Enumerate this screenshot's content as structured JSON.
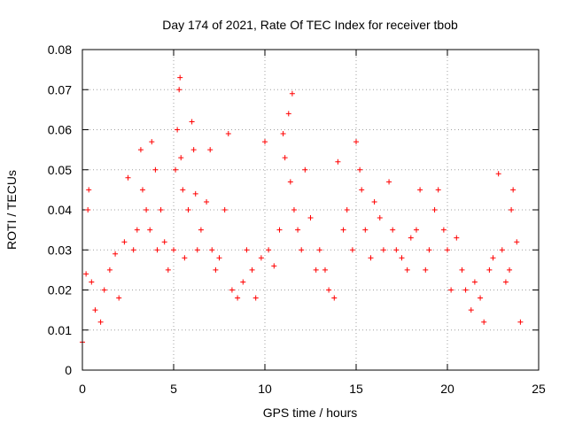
{
  "chart_data": {
    "type": "scatter",
    "title": "Day 174 of 2021, Rate Of TEC Index for receiver tbob",
    "xlabel": "GPS time / hours",
    "ylabel": "ROTI / TECUs",
    "xlim": [
      0,
      25
    ],
    "ylim": [
      0,
      0.08
    ],
    "x_ticks": [
      0,
      5,
      10,
      15,
      20,
      25
    ],
    "x_tick_labels": [
      "0",
      "5",
      "10",
      "15",
      "20",
      "25"
    ],
    "y_ticks": [
      0,
      0.01,
      0.02,
      0.03,
      0.04,
      0.05,
      0.06,
      0.07,
      0.08
    ],
    "y_tick_labels": [
      "0",
      "0.01",
      "0.02",
      "0.03",
      "0.04",
      "0.05",
      "0.06",
      "0.07",
      "0.08"
    ],
    "grid": true,
    "marker": "+",
    "marker_color": "#ff0000",
    "series": [
      {
        "name": "ROTI",
        "x": [
          0.0,
          0.2,
          0.3,
          0.35,
          0.5,
          0.7,
          1.0,
          1.2,
          1.5,
          1.8,
          2.0,
          2.3,
          2.5,
          2.8,
          3.0,
          3.2,
          3.3,
          3.5,
          3.7,
          3.8,
          4.0,
          4.1,
          4.3,
          4.5,
          4.7,
          5.0,
          5.1,
          5.2,
          5.3,
          5.35,
          5.4,
          5.5,
          5.6,
          5.8,
          6.0,
          6.1,
          6.2,
          6.3,
          6.5,
          6.8,
          7.0,
          7.1,
          7.3,
          7.5,
          7.8,
          8.0,
          8.2,
          8.5,
          8.8,
          9.0,
          9.3,
          9.5,
          9.8,
          10.0,
          10.2,
          10.5,
          10.8,
          11.0,
          11.1,
          11.3,
          11.4,
          11.5,
          11.6,
          11.8,
          12.0,
          12.2,
          12.5,
          12.8,
          13.0,
          13.3,
          13.5,
          13.8,
          14.0,
          14.3,
          14.5,
          14.8,
          15.0,
          15.2,
          15.3,
          15.5,
          15.8,
          16.0,
          16.3,
          16.5,
          16.8,
          17.0,
          17.2,
          17.5,
          17.8,
          18.0,
          18.3,
          18.5,
          18.8,
          19.0,
          19.3,
          19.5,
          19.8,
          20.0,
          20.2,
          20.5,
          20.8,
          21.0,
          21.3,
          21.5,
          21.8,
          22.0,
          22.3,
          22.5,
          22.8,
          23.0,
          23.2,
          23.4,
          23.5,
          23.6,
          23.8,
          24.0
        ],
        "y": [
          0.007,
          0.024,
          0.04,
          0.045,
          0.022,
          0.015,
          0.012,
          0.02,
          0.025,
          0.029,
          0.018,
          0.032,
          0.048,
          0.03,
          0.035,
          0.055,
          0.045,
          0.04,
          0.035,
          0.057,
          0.05,
          0.03,
          0.04,
          0.032,
          0.025,
          0.03,
          0.05,
          0.06,
          0.07,
          0.073,
          0.053,
          0.045,
          0.028,
          0.04,
          0.062,
          0.055,
          0.044,
          0.03,
          0.035,
          0.042,
          0.055,
          0.03,
          0.025,
          0.028,
          0.04,
          0.059,
          0.02,
          0.018,
          0.022,
          0.03,
          0.025,
          0.018,
          0.028,
          0.057,
          0.03,
          0.026,
          0.035,
          0.059,
          0.053,
          0.064,
          0.047,
          0.069,
          0.04,
          0.035,
          0.03,
          0.05,
          0.038,
          0.025,
          0.03,
          0.025,
          0.02,
          0.018,
          0.052,
          0.035,
          0.04,
          0.03,
          0.057,
          0.05,
          0.045,
          0.035,
          0.028,
          0.042,
          0.038,
          0.03,
          0.047,
          0.035,
          0.03,
          0.028,
          0.025,
          0.033,
          0.035,
          0.045,
          0.025,
          0.03,
          0.04,
          0.045,
          0.035,
          0.03,
          0.02,
          0.033,
          0.025,
          0.02,
          0.015,
          0.022,
          0.018,
          0.012,
          0.025,
          0.028,
          0.049,
          0.03,
          0.022,
          0.025,
          0.04,
          0.045,
          0.032,
          0.012
        ]
      }
    ]
  }
}
